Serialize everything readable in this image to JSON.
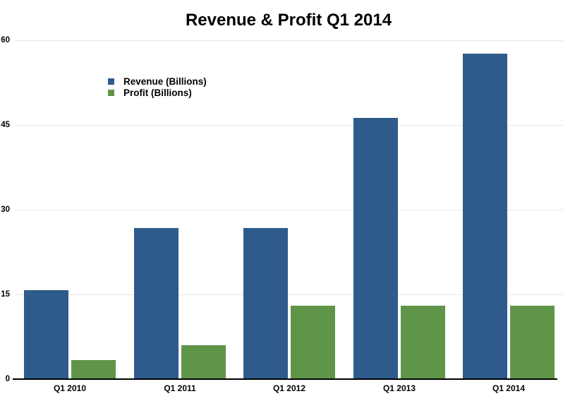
{
  "title": "Revenue & Profit Q1 2014",
  "chart_data": {
    "type": "bar",
    "title": "Revenue & Profit Q1 2014",
    "categories": [
      "Q1 2010",
      "Q1 2011",
      "Q1 2012",
      "Q1 2013",
      "Q1 2014"
    ],
    "series": [
      {
        "name": "Revenue (Billions)",
        "color": "#2E5B8C",
        "values": [
          15.7,
          26.7,
          26.7,
          46.3,
          57.6
        ]
      },
      {
        "name": "Profit (Billions)",
        "color": "#5F9549",
        "values": [
          3.4,
          6.0,
          13.0,
          13.0,
          13.0
        ]
      }
    ],
    "xlabel": "",
    "ylabel": "",
    "ylim": [
      0,
      60
    ],
    "yticks": [
      0,
      15,
      30,
      45,
      60
    ],
    "grid": true,
    "legend_position": "inside-upper-left"
  },
  "colors": {
    "background": "#ffffff",
    "grid": "#e7e7e7",
    "axis": "#000000",
    "text": "#000000"
  }
}
